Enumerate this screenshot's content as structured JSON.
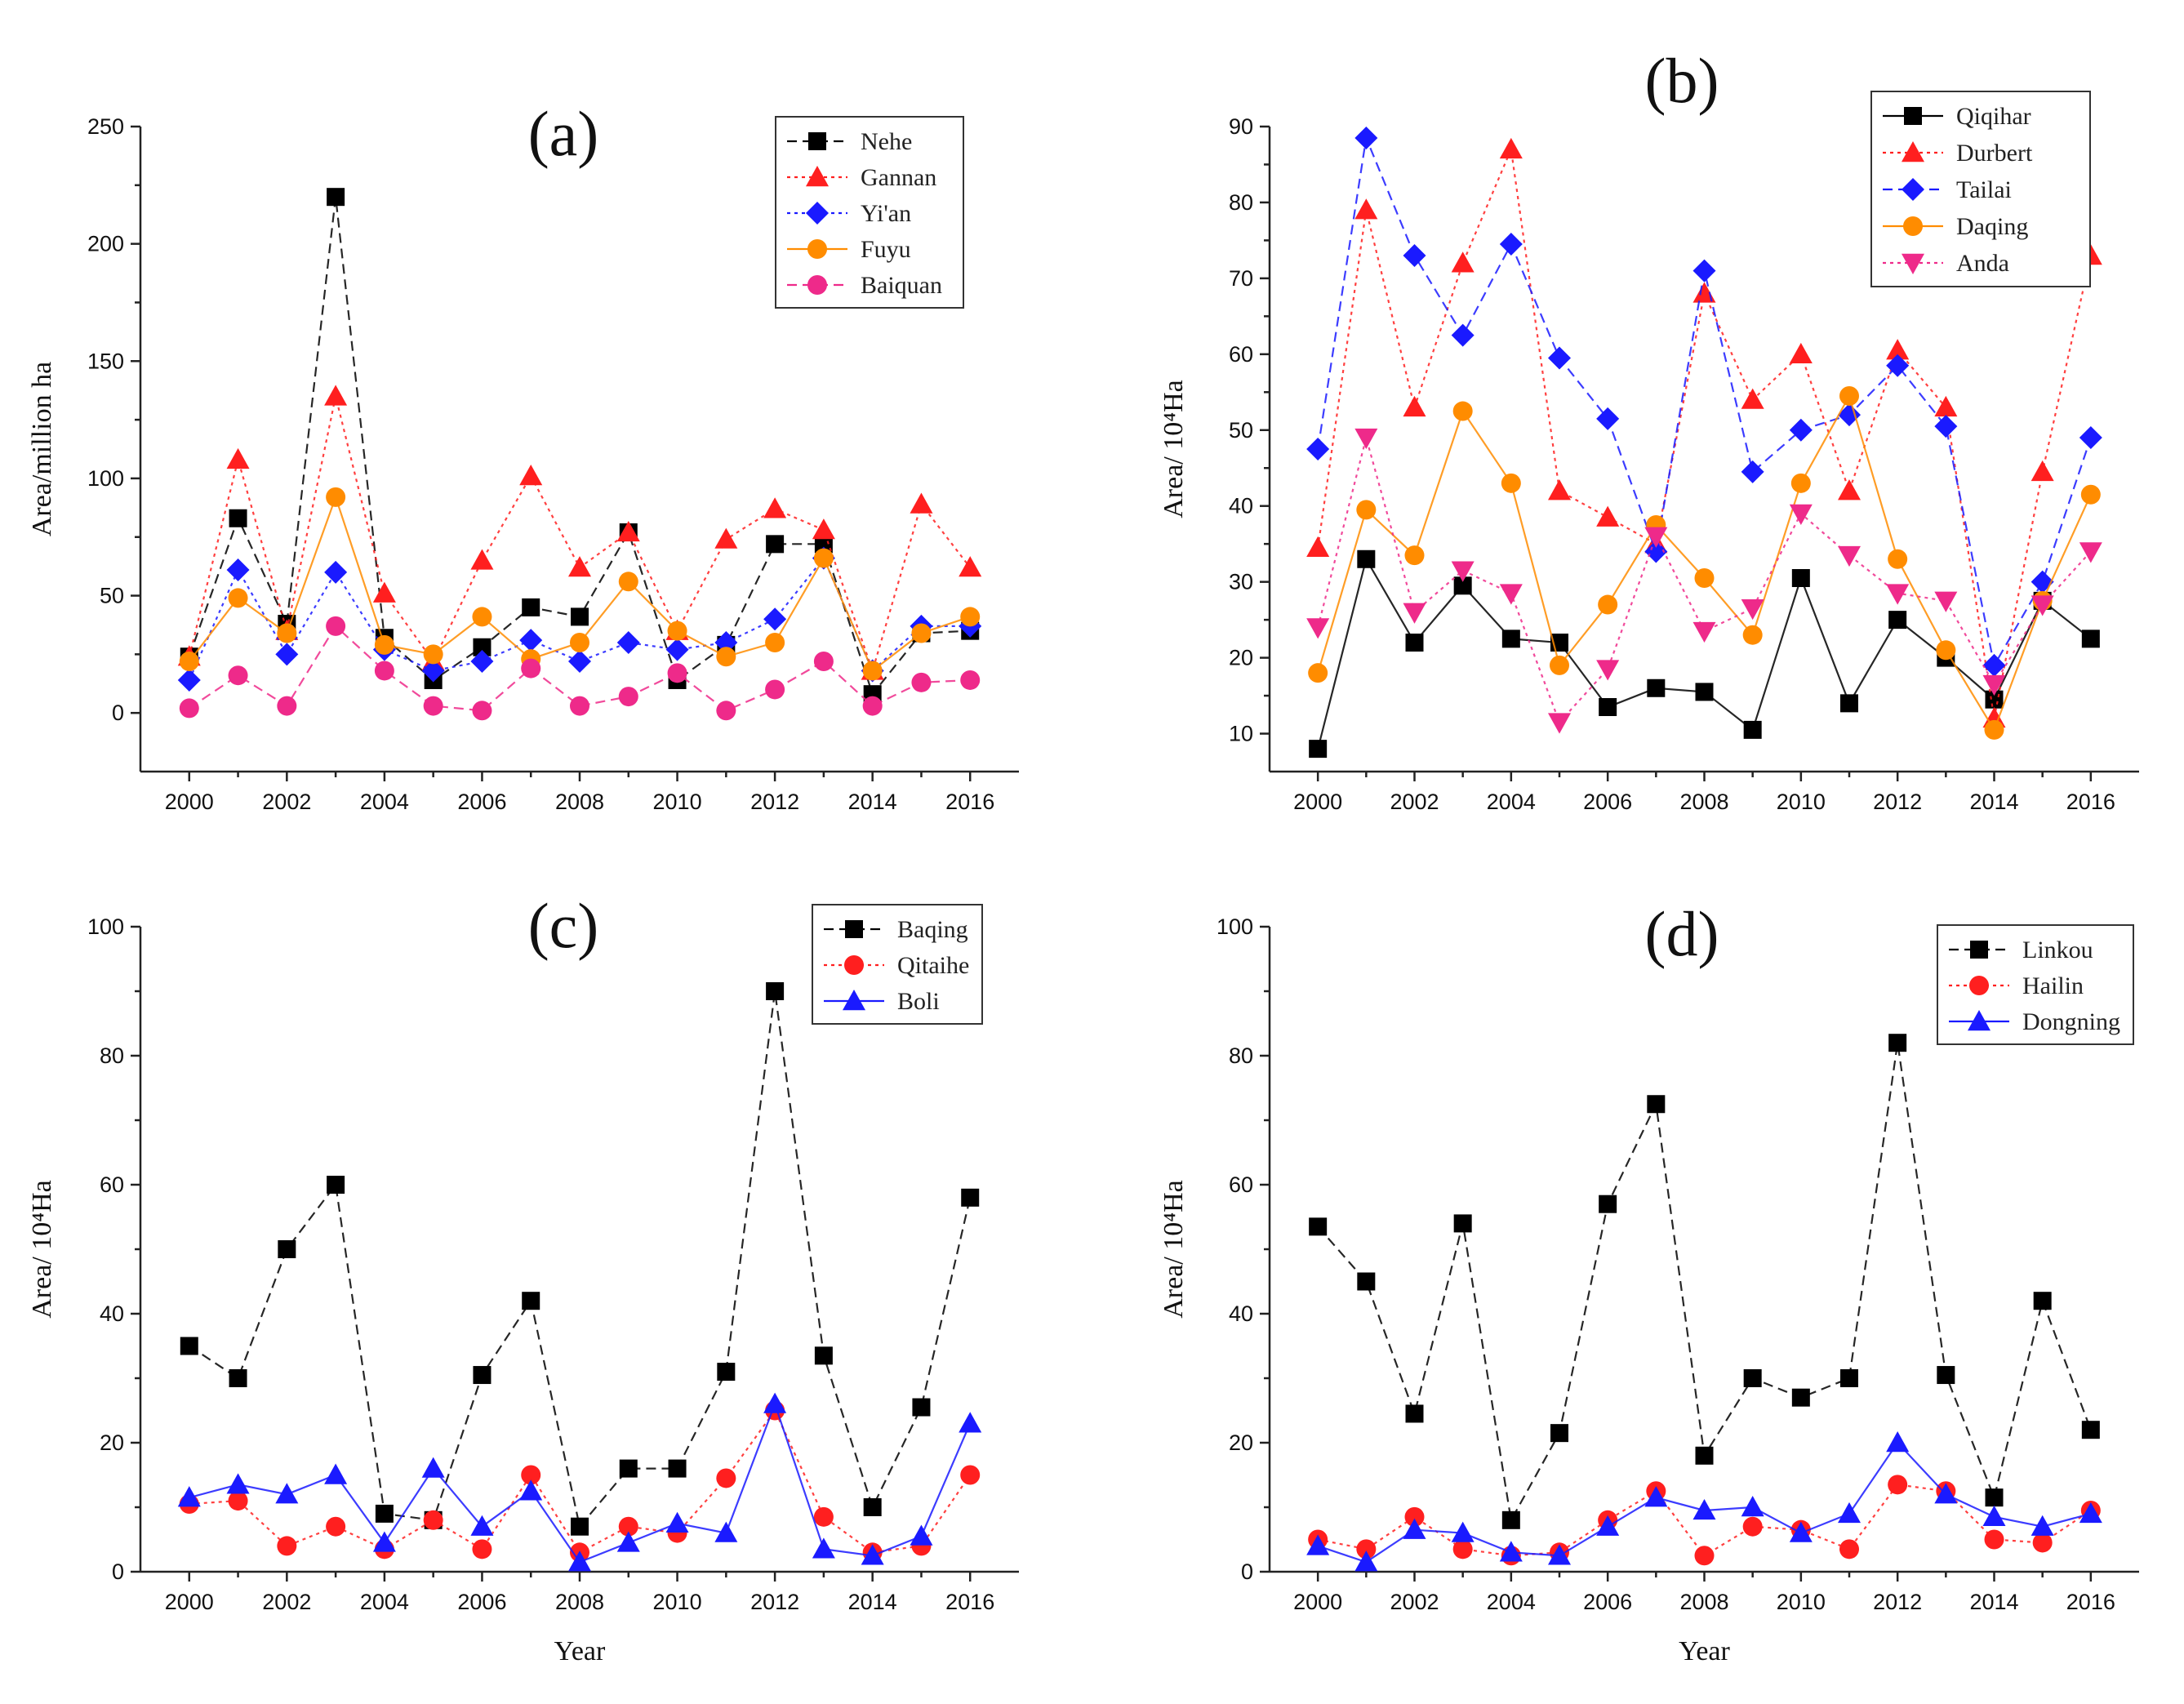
{
  "figure": {
    "panels": [
      {
        "id": "a",
        "label": "(a)",
        "ylabel": "Area/million ha",
        "xlabel": "",
        "legend_position": "top-right"
      },
      {
        "id": "b",
        "label": "(b)",
        "ylabel": "Area/ 10⁴Ha",
        "xlabel": "",
        "legend_position": "top-right"
      },
      {
        "id": "c",
        "label": "(c)",
        "ylabel": "Area/ 10⁴Ha",
        "xlabel": "Year",
        "legend_position": "top-right"
      },
      {
        "id": "d",
        "label": "(d)",
        "ylabel": "Area/ 10⁴Ha",
        "xlabel": "Year",
        "legend_position": "top-right"
      }
    ]
  },
  "chart_data": [
    {
      "type": "line",
      "panel": "(a)",
      "title": "(a)",
      "xlabel": "",
      "ylabel": "Area/million ha",
      "x": [
        2000,
        2001,
        2002,
        2003,
        2004,
        2005,
        2006,
        2007,
        2008,
        2009,
        2010,
        2011,
        2012,
        2013,
        2014,
        2015,
        2016
      ],
      "xticks": [
        "2000",
        "2002",
        "2004",
        "2006",
        "2008",
        "2010",
        "2012",
        "2014",
        "2016"
      ],
      "xlim": [
        1999,
        2017
      ],
      "ylim": [
        -25,
        250
      ],
      "yticks": [
        0,
        50,
        100,
        150,
        200,
        250
      ],
      "series": [
        {
          "name": "Nehe",
          "color": "#000000",
          "marker": "square",
          "dash": "dashed",
          "values": [
            24,
            83,
            38,
            220,
            32,
            14,
            28,
            45,
            41,
            77,
            14,
            29,
            72,
            72,
            8,
            34,
            35
          ]
        },
        {
          "name": "Gannan",
          "color": "#ff1f1f",
          "marker": "triangle-up",
          "dash": "dotted",
          "values": [
            24,
            108,
            35,
            135,
            51,
            22,
            65,
            101,
            62,
            77,
            35,
            74,
            87,
            78,
            18,
            89,
            62
          ]
        },
        {
          "name": "Yi'an",
          "color": "#1a1aff",
          "marker": "diamond",
          "dash": "dotted",
          "values": [
            14,
            61,
            25,
            60,
            27,
            18,
            22,
            31,
            22,
            30,
            27,
            30,
            40,
            66,
            18,
            37,
            37
          ]
        },
        {
          "name": "Fuyu",
          "color": "#ff8c00",
          "marker": "circle",
          "dash": "solid",
          "values": [
            22,
            49,
            34,
            92,
            29,
            25,
            41,
            23,
            30,
            56,
            35,
            24,
            30,
            66,
            18,
            34,
            41
          ]
        },
        {
          "name": "Baiquan",
          "color": "#ee2a8a",
          "marker": "circle",
          "dash": "dashed",
          "values": [
            2,
            16,
            3,
            37,
            18,
            3,
            1,
            19,
            3,
            7,
            17,
            1,
            10,
            22,
            3,
            13,
            14
          ]
        }
      ]
    },
    {
      "type": "line",
      "panel": "(b)",
      "title": "(b)",
      "xlabel": "",
      "ylabel": "Area/ 10⁴Ha",
      "x": [
        2000,
        2001,
        2002,
        2003,
        2004,
        2005,
        2006,
        2007,
        2008,
        2009,
        2010,
        2011,
        2012,
        2013,
        2014,
        2015,
        2016
      ],
      "xticks": [
        "2000",
        "2002",
        "2004",
        "2006",
        "2008",
        "2010",
        "2012",
        "2014",
        "2016"
      ],
      "xlim": [
        1999,
        2017
      ],
      "ylim": [
        5,
        90
      ],
      "yticks": [
        10,
        20,
        30,
        40,
        50,
        60,
        70,
        80,
        90
      ],
      "series": [
        {
          "name": "Qiqihar",
          "color": "#000000",
          "marker": "square",
          "dash": "solid",
          "values": [
            8,
            33,
            22,
            29.5,
            22.5,
            22,
            13.5,
            16,
            15.5,
            10.5,
            30.5,
            14,
            25,
            20,
            14.5,
            27.5,
            22.5
          ]
        },
        {
          "name": "Durbert",
          "color": "#ff1f1f",
          "marker": "triangle-up",
          "dash": "dotted",
          "values": [
            34.5,
            79,
            53,
            72,
            87,
            42,
            38.5,
            35,
            68,
            54,
            60,
            42,
            60.5,
            53,
            12,
            44.5,
            73
          ]
        },
        {
          "name": "Tailai",
          "color": "#1a1aff",
          "marker": "diamond",
          "dash": "dashed",
          "values": [
            47.5,
            88.5,
            73,
            62.5,
            74.5,
            59.5,
            51.5,
            34,
            71,
            44.5,
            50,
            52,
            58.5,
            50.5,
            19,
            30,
            49
          ]
        },
        {
          "name": "Daqing",
          "color": "#ff8c00",
          "marker": "circle",
          "dash": "solid",
          "values": [
            18,
            39.5,
            33.5,
            52.5,
            43,
            19,
            27,
            37.5,
            30.5,
            23,
            43,
            54.5,
            33,
            21,
            10.5,
            27.5,
            41.5
          ]
        },
        {
          "name": "Anda",
          "color": "#ee2a8a",
          "marker": "triangle-down",
          "dash": "dotted",
          "values": [
            24,
            49,
            26,
            31.5,
            28.5,
            11.5,
            18.5,
            36,
            23.5,
            26.5,
            39,
            33.5,
            28.5,
            27.5,
            16.5,
            27,
            34
          ]
        }
      ]
    },
    {
      "type": "line",
      "panel": "(c)",
      "title": "(c)",
      "xlabel": "Year",
      "ylabel": "Area/ 10⁴Ha",
      "x": [
        2000,
        2001,
        2002,
        2003,
        2004,
        2005,
        2006,
        2007,
        2008,
        2009,
        2010,
        2011,
        2012,
        2013,
        2014,
        2015,
        2016
      ],
      "xticks": [
        "2000",
        "2002",
        "2004",
        "2006",
        "2008",
        "2010",
        "2012",
        "2014",
        "2016"
      ],
      "xlim": [
        1999,
        2017
      ],
      "ylim": [
        0,
        100
      ],
      "yticks": [
        0,
        20,
        40,
        60,
        80,
        100
      ],
      "series": [
        {
          "name": "Baqing",
          "color": "#000000",
          "marker": "square",
          "dash": "dashed",
          "values": [
            35,
            30,
            50,
            60,
            9,
            8,
            30.5,
            42,
            7,
            16,
            16,
            31,
            90,
            33.5,
            10,
            25.5,
            58
          ]
        },
        {
          "name": "Qitaihe",
          "color": "#ff1f1f",
          "marker": "circle",
          "dash": "dotted",
          "values": [
            10.5,
            11,
            4,
            7,
            3.5,
            8,
            3.5,
            15,
            3,
            7,
            6,
            14.5,
            25,
            8.5,
            3,
            4,
            15
          ]
        },
        {
          "name": "Boli",
          "color": "#1a1aff",
          "marker": "triangle-up",
          "dash": "solid",
          "values": [
            11.5,
            13.5,
            12,
            15,
            4.5,
            16,
            7,
            12.5,
            1.5,
            4.5,
            7.5,
            6,
            26,
            3.5,
            2.5,
            5.5,
            23
          ]
        }
      ]
    },
    {
      "type": "line",
      "panel": "(d)",
      "title": "(d)",
      "xlabel": "Year",
      "ylabel": "Area/ 10⁴Ha",
      "x": [
        2000,
        2001,
        2002,
        2003,
        2004,
        2005,
        2006,
        2007,
        2008,
        2009,
        2010,
        2011,
        2012,
        2013,
        2014,
        2015,
        2016
      ],
      "xticks": [
        "2000",
        "2002",
        "2004",
        "2006",
        "2008",
        "2010",
        "2012",
        "2014",
        "2016"
      ],
      "xlim": [
        1999,
        2017
      ],
      "ylim": [
        0,
        100
      ],
      "yticks": [
        0,
        20,
        40,
        60,
        80,
        100
      ],
      "series": [
        {
          "name": "Linkou",
          "color": "#000000",
          "marker": "square",
          "dash": "dashed",
          "values": [
            53.5,
            45,
            24.5,
            54,
            8,
            21.5,
            57,
            72.5,
            18,
            30,
            27,
            30,
            82,
            30.5,
            11.5,
            42,
            22
          ]
        },
        {
          "name": "Hailin",
          "color": "#ff1f1f",
          "marker": "circle",
          "dash": "dotted",
          "values": [
            5,
            3.5,
            8.5,
            3.5,
            2.5,
            3,
            8,
            12.5,
            2.5,
            7,
            6.5,
            3.5,
            13.5,
            12.5,
            5,
            4.5,
            9.5
          ]
        },
        {
          "name": "Dongning",
          "color": "#1a1aff",
          "marker": "triangle-up",
          "dash": "solid",
          "values": [
            4,
            1.5,
            6.5,
            6,
            3,
            2.5,
            7,
            11.5,
            9.5,
            10,
            6,
            9,
            20,
            12,
            8.5,
            7,
            9
          ]
        }
      ]
    }
  ]
}
